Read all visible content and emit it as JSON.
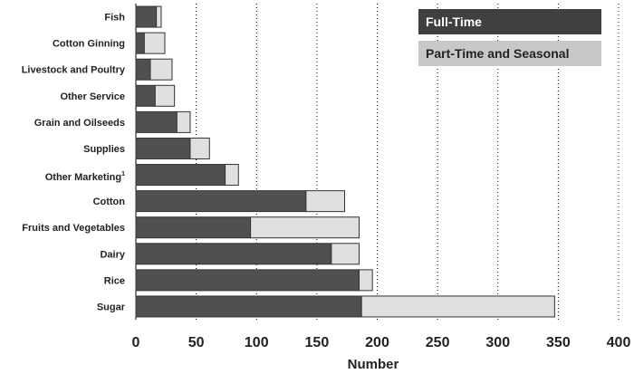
{
  "colors": {
    "full_time": "#505050",
    "part_time": "#e0e0e0",
    "stroke": "#333333",
    "grid": "#000000"
  },
  "chart_data": {
    "type": "bar",
    "orientation": "horizontal",
    "stacked": true,
    "title": "",
    "xlabel": "Number",
    "ylabel": "",
    "xlim": [
      0,
      400
    ],
    "xticks": [
      0,
      50,
      100,
      150,
      200,
      250,
      300,
      350,
      400
    ],
    "grid": "vertical dotted",
    "legend": "top-right",
    "categories": [
      "Fish",
      "Cotton Ginning",
      "Livestock and Poultry",
      "Other Service",
      "Grain and Oilseeds",
      "Supplies",
      "Other Marketing",
      "Cotton",
      "Fruits and Vegetables",
      "Dairy",
      "Rice",
      "Sugar"
    ],
    "category_superscripts": [
      "",
      "",
      "",
      "",
      "",
      "",
      "1",
      "",
      "",
      "",
      "",
      ""
    ],
    "series": [
      {
        "name": "Full-Time",
        "values": [
          17,
          7,
          12,
          16,
          34,
          45,
          74,
          141,
          95,
          162,
          185,
          187
        ]
      },
      {
        "name": "Part-Time and Seasonal",
        "values": [
          4,
          17,
          18,
          16,
          11,
          16,
          11,
          32,
          90,
          23,
          11,
          160
        ]
      }
    ]
  }
}
